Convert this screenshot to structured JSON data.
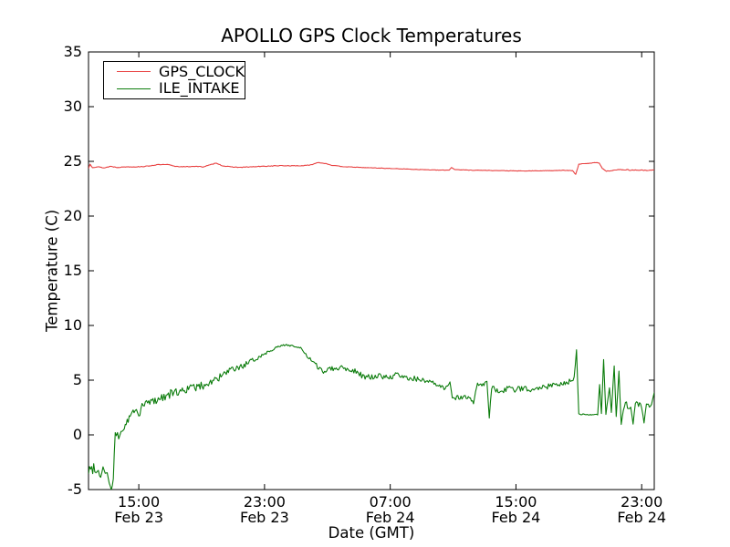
{
  "chart_data": {
    "type": "line",
    "title": "APOLLO GPS Clock Temperatures",
    "xlabel": "Date (GMT)",
    "ylabel": "Temperature (C)",
    "x_unit": "hours since Feb 23 00:00 (GMT)",
    "xlim": [
      11.8,
      47.8
    ],
    "ylim": [
      -5,
      35
    ],
    "grid": false,
    "legend_position": "upper left",
    "x_ticks": [
      {
        "t": 15,
        "time": "15:00",
        "date": "Feb 23"
      },
      {
        "t": 23,
        "time": "23:00",
        "date": "Feb 23"
      },
      {
        "t": 31,
        "time": "07:00",
        "date": "Feb 24"
      },
      {
        "t": 39,
        "time": "15:00",
        "date": "Feb 24"
      },
      {
        "t": 47,
        "time": "23:00",
        "date": "Feb 24"
      }
    ],
    "y_ticks": [
      -5,
      0,
      5,
      10,
      15,
      20,
      25,
      30,
      35
    ],
    "point_format": "[t_hours, temperature_C, noise_amplitude_C]",
    "series": [
      {
        "name": "GPS_CLOCK",
        "color": "#e84040",
        "points": [
          [
            11.8,
            24.35,
            0.03
          ],
          [
            11.9,
            24.75,
            0.03
          ],
          [
            12.05,
            24.45,
            0.03
          ],
          [
            12.4,
            24.5,
            0.03
          ],
          [
            12.8,
            24.4,
            0.03
          ],
          [
            13.2,
            24.55,
            0.03
          ],
          [
            13.6,
            24.45,
            0.03
          ],
          [
            14.2,
            24.5,
            0.03
          ],
          [
            14.9,
            24.5,
            0.03
          ],
          [
            15.5,
            24.55,
            0.03
          ],
          [
            16.2,
            24.7,
            0.03
          ],
          [
            16.9,
            24.7,
            0.03
          ],
          [
            17.3,
            24.55,
            0.03
          ],
          [
            17.9,
            24.5,
            0.03
          ],
          [
            18.5,
            24.55,
            0.03
          ],
          [
            19.1,
            24.5,
            0.03
          ],
          [
            19.6,
            24.7,
            0.03
          ],
          [
            19.95,
            24.85,
            0.03
          ],
          [
            20.3,
            24.6,
            0.03
          ],
          [
            20.8,
            24.5,
            0.03
          ],
          [
            21.5,
            24.45,
            0.03
          ],
          [
            22.2,
            24.5,
            0.03
          ],
          [
            23.0,
            24.55,
            0.03
          ],
          [
            23.8,
            24.6,
            0.03
          ],
          [
            24.6,
            24.6,
            0.03
          ],
          [
            25.3,
            24.6,
            0.03
          ],
          [
            25.9,
            24.65,
            0.03
          ],
          [
            26.4,
            24.9,
            0.02
          ],
          [
            26.9,
            24.8,
            0.02
          ],
          [
            27.4,
            24.6,
            0.03
          ],
          [
            28.2,
            24.5,
            0.02
          ],
          [
            29.0,
            24.45,
            0.02
          ],
          [
            30.0,
            24.4,
            0.02
          ],
          [
            31.0,
            24.35,
            0.02
          ],
          [
            32.0,
            24.3,
            0.02
          ],
          [
            33.0,
            24.25,
            0.02
          ],
          [
            34.0,
            24.2,
            0.02
          ],
          [
            34.75,
            24.2,
            0.02
          ],
          [
            34.9,
            24.45,
            0.02
          ],
          [
            35.1,
            24.25,
            0.02
          ],
          [
            36.0,
            24.2,
            0.02
          ],
          [
            37.0,
            24.18,
            0.02
          ],
          [
            38.0,
            24.15,
            0.02
          ],
          [
            39.5,
            24.12,
            0.02
          ],
          [
            41.0,
            24.15,
            0.02
          ],
          [
            42.0,
            24.18,
            0.02
          ],
          [
            42.6,
            24.15,
            0.02
          ],
          [
            42.8,
            23.8,
            0.02
          ],
          [
            43.0,
            24.75,
            0.02
          ],
          [
            43.5,
            24.8,
            0.02
          ],
          [
            44.15,
            24.9,
            0.02
          ],
          [
            44.3,
            24.85,
            0.02
          ],
          [
            44.5,
            24.35,
            0.03
          ],
          [
            44.75,
            24.1,
            0.03
          ],
          [
            45.2,
            24.2,
            0.04
          ],
          [
            45.8,
            24.25,
            0.04
          ],
          [
            46.4,
            24.2,
            0.04
          ],
          [
            47.0,
            24.2,
            0.03
          ],
          [
            47.4,
            24.15,
            0.03
          ],
          [
            47.8,
            24.25,
            0.03
          ]
        ]
      },
      {
        "name": "ILE_INTAKE",
        "color": "#0b7c0b",
        "points": [
          [
            11.8,
            -3.3,
            0.55
          ],
          [
            12.2,
            -2.9,
            0.5
          ],
          [
            12.5,
            -3.6,
            0.5
          ],
          [
            12.8,
            -3.0,
            0.5
          ],
          [
            13.05,
            -3.9,
            0.35
          ],
          [
            13.25,
            -5.1,
            0.15
          ],
          [
            13.38,
            -4.1,
            0.15
          ],
          [
            13.5,
            0.2,
            0.3
          ],
          [
            13.72,
            -0.2,
            0.3
          ],
          [
            13.95,
            0.4,
            0.3
          ],
          [
            14.2,
            1.0,
            0.3
          ],
          [
            14.45,
            1.7,
            0.35
          ],
          [
            14.7,
            2.2,
            0.4
          ],
          [
            15.0,
            2.0,
            0.4
          ],
          [
            15.35,
            2.8,
            0.4
          ],
          [
            15.7,
            3.0,
            0.4
          ],
          [
            16.1,
            3.2,
            0.4
          ],
          [
            16.6,
            3.5,
            0.38
          ],
          [
            17.1,
            3.8,
            0.38
          ],
          [
            17.7,
            4.0,
            0.35
          ],
          [
            18.3,
            4.3,
            0.33
          ],
          [
            18.9,
            4.4,
            0.38
          ],
          [
            19.5,
            4.8,
            0.38
          ],
          [
            20.1,
            5.2,
            0.33
          ],
          [
            20.7,
            5.8,
            0.3
          ],
          [
            21.3,
            6.1,
            0.28
          ],
          [
            21.9,
            6.5,
            0.25
          ],
          [
            22.5,
            7.0,
            0.2
          ],
          [
            23.1,
            7.5,
            0.15
          ],
          [
            23.6,
            7.9,
            0.12
          ],
          [
            24.0,
            8.1,
            0.1
          ],
          [
            24.4,
            8.25,
            0.1
          ],
          [
            24.9,
            8.1,
            0.1
          ],
          [
            25.3,
            7.9,
            0.12
          ],
          [
            25.7,
            7.2,
            0.15
          ],
          [
            26.1,
            6.6,
            0.18
          ],
          [
            26.5,
            6.1,
            0.22
          ],
          [
            26.75,
            5.7,
            0.22
          ],
          [
            27.1,
            6.2,
            0.25
          ],
          [
            27.5,
            6.0,
            0.25
          ],
          [
            27.9,
            6.2,
            0.25
          ],
          [
            28.4,
            6.0,
            0.25
          ],
          [
            28.9,
            5.8,
            0.25
          ],
          [
            29.4,
            5.2,
            0.28
          ],
          [
            29.9,
            5.3,
            0.28
          ],
          [
            30.4,
            5.4,
            0.25
          ],
          [
            31.0,
            5.2,
            0.25
          ],
          [
            31.4,
            5.5,
            0.25
          ],
          [
            31.9,
            5.2,
            0.25
          ],
          [
            32.4,
            5.2,
            0.25
          ],
          [
            33.0,
            5.0,
            0.25
          ],
          [
            33.5,
            4.8,
            0.25
          ],
          [
            34.0,
            4.5,
            0.25
          ],
          [
            34.5,
            4.2,
            0.22
          ],
          [
            34.8,
            4.9,
            0.1
          ],
          [
            34.95,
            3.4,
            0.2
          ],
          [
            35.3,
            3.4,
            0.22
          ],
          [
            35.9,
            3.5,
            0.22
          ],
          [
            36.3,
            2.9,
            0.2
          ],
          [
            36.55,
            4.7,
            0.15
          ],
          [
            36.9,
            4.5,
            0.22
          ],
          [
            37.15,
            4.8,
            0.15
          ],
          [
            37.3,
            1.6,
            0.1
          ],
          [
            37.45,
            4.3,
            0.2
          ],
          [
            38.0,
            4.0,
            0.28
          ],
          [
            38.5,
            4.2,
            0.28
          ],
          [
            39.0,
            4.1,
            0.28
          ],
          [
            39.5,
            4.3,
            0.28
          ],
          [
            40.0,
            4.2,
            0.28
          ],
          [
            40.5,
            4.4,
            0.25
          ],
          [
            41.0,
            4.4,
            0.25
          ],
          [
            41.5,
            4.7,
            0.25
          ],
          [
            42.0,
            4.6,
            0.25
          ],
          [
            42.4,
            4.9,
            0.22
          ],
          [
            42.7,
            5.2,
            0.18
          ],
          [
            42.85,
            7.8,
            0.05
          ],
          [
            43.0,
            1.9,
            0.05
          ],
          [
            43.6,
            1.85,
            0.05
          ],
          [
            44.2,
            1.85,
            0.05
          ],
          [
            44.32,
            4.6,
            0.03
          ],
          [
            44.44,
            1.9,
            0.05
          ],
          [
            44.58,
            6.9,
            0.03
          ],
          [
            44.72,
            1.9,
            0.05
          ],
          [
            44.95,
            4.3,
            0.05
          ],
          [
            45.07,
            2.0,
            0.08
          ],
          [
            45.25,
            6.3,
            0.03
          ],
          [
            45.38,
            1.6,
            0.08
          ],
          [
            45.55,
            5.8,
            0.03
          ],
          [
            45.7,
            0.9,
            0.08
          ],
          [
            45.9,
            2.8,
            0.28
          ],
          [
            46.3,
            2.6,
            0.28
          ],
          [
            46.45,
            0.9,
            0.1
          ],
          [
            46.6,
            3.0,
            0.25
          ],
          [
            47.0,
            2.6,
            0.22
          ],
          [
            47.15,
            1.0,
            0.1
          ],
          [
            47.3,
            3.0,
            0.2
          ],
          [
            47.55,
            2.5,
            0.2
          ],
          [
            47.7,
            3.3,
            0.1
          ],
          [
            47.8,
            3.9,
            0.05
          ]
        ]
      }
    ]
  }
}
